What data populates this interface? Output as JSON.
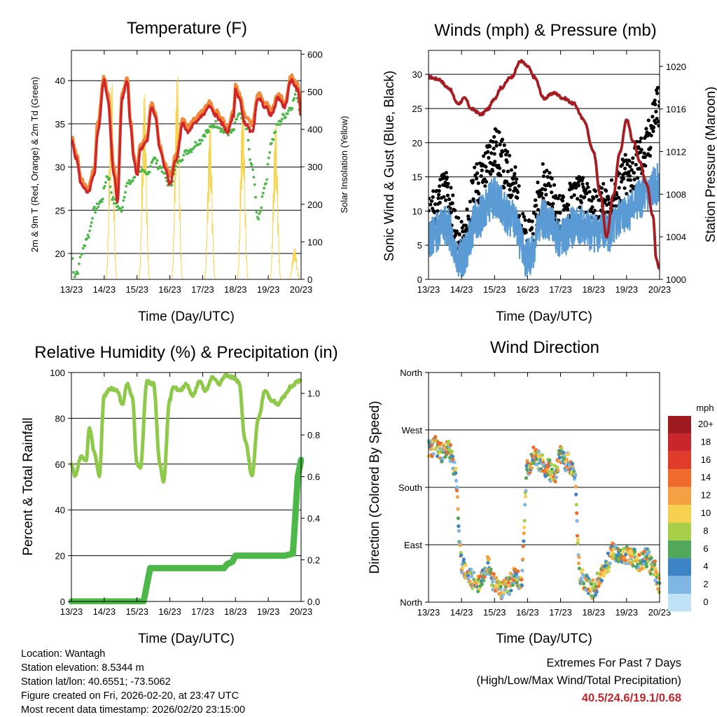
{
  "colors": {
    "temp_2m": "#d0262a",
    "temp_9m": "#f08a3a",
    "dewpoint": "#4bb848",
    "solar": "#f5d44a",
    "wind": "#5b9bd5",
    "gust": "#000000",
    "pressure": "#a51d22",
    "rh": "#8ec94a",
    "precip": "#4bb848",
    "extremes": "#c0282d"
  },
  "x_ticks": [
    "13/23",
    "14/23",
    "15/23",
    "16/23",
    "17/23",
    "18/23",
    "19/23",
    "20/23"
  ],
  "x_axis_label": "Time (Day/UTC)",
  "chart_data": [
    {
      "type": "line",
      "title": "Temperature (F)",
      "xlabel": "Time (Day/UTC)",
      "ylabel": "2m & 9m T (Red, Orange) & 2m Td (Green)",
      "y2label": "Solar Insolation (Yellow)",
      "ylim": [
        17,
        43.5
      ],
      "y2lim": [
        0,
        610
      ],
      "yticks": [
        20,
        25,
        30,
        35,
        40
      ],
      "y2ticks": [
        0,
        100,
        200,
        300,
        400,
        500,
        600
      ],
      "x_days": [
        0,
        1,
        2,
        3,
        4,
        5,
        6,
        7
      ],
      "series": [
        {
          "name": "2m T",
          "x": [
            0,
            0.15,
            0.3,
            0.5,
            0.7,
            0.8,
            1.0,
            1.1,
            1.3,
            1.4,
            1.55,
            1.7,
            1.8,
            1.9,
            2.0,
            2.1,
            2.3,
            2.45,
            2.55,
            2.7,
            2.85,
            3.0,
            3.2,
            3.4,
            3.55,
            3.75,
            4.0,
            4.2,
            4.4,
            4.6,
            4.75,
            4.95,
            5.0,
            5.1,
            5.3,
            5.5,
            5.7,
            5.9,
            6.1,
            6.3,
            6.5,
            6.7,
            6.9,
            7.0
          ],
          "y": [
            33,
            31,
            28,
            27,
            29,
            34,
            40,
            38,
            29,
            26,
            38,
            40,
            35,
            31,
            29,
            32,
            33,
            37,
            36,
            32,
            30,
            28,
            31,
            35,
            34,
            35,
            36,
            37,
            36,
            35,
            34,
            36,
            39,
            38,
            35,
            34,
            38,
            37,
            36,
            38,
            37,
            40,
            39,
            36
          ]
        },
        {
          "name": "9m T",
          "x": [
            0,
            0.15,
            0.3,
            0.5,
            0.7,
            0.8,
            1.0,
            1.1,
            1.3,
            1.4,
            1.55,
            1.7,
            1.8,
            1.9,
            2.0,
            2.1,
            2.3,
            2.45,
            2.55,
            2.7,
            2.85,
            3.0,
            3.2,
            3.4,
            3.55,
            3.75,
            4.0,
            4.2,
            4.4,
            4.6,
            4.75,
            4.95,
            5.0,
            5.1,
            5.3,
            5.5,
            5.7,
            5.9,
            6.1,
            6.3,
            6.5,
            6.7,
            6.9,
            7.0
          ],
          "y": [
            33.5,
            31.5,
            28.5,
            27.5,
            30,
            35,
            40.5,
            38.5,
            30,
            27,
            38.5,
            40.3,
            35.5,
            31.5,
            29.5,
            32.5,
            33.5,
            37.5,
            36.5,
            32.5,
            30.5,
            29,
            31.5,
            35.5,
            34.5,
            35.5,
            36.5,
            37.5,
            36.5,
            35.5,
            34.5,
            36.5,
            39.5,
            38.5,
            36,
            35,
            38.5,
            37.5,
            36.5,
            38.5,
            37.5,
            40.5,
            39.5,
            36.5
          ]
        },
        {
          "name": "2m Td",
          "x": [
            0,
            0.1,
            0.2,
            0.3,
            0.5,
            0.7,
            0.9,
            1.1,
            1.3,
            1.5,
            1.7,
            1.9,
            2.0,
            2.3,
            2.5,
            2.7,
            3.0,
            3.3,
            3.6,
            3.9,
            4.1,
            4.4,
            4.7,
            4.9,
            5.1,
            5.3,
            5.5,
            5.7,
            5.9,
            6.1,
            6.3,
            6.5,
            6.7,
            6.85,
            7.0
          ],
          "y": [
            20,
            17.5,
            18,
            20,
            22,
            25,
            26,
            29,
            26,
            25,
            28,
            28.5,
            30,
            29,
            31,
            30,
            28,
            31,
            32,
            33,
            34,
            35,
            34,
            34,
            36,
            35,
            30,
            24,
            28,
            33,
            35,
            36,
            37,
            38.5,
            36
          ]
        },
        {
          "name": "Solar Insolation",
          "axis": "y2",
          "peaks_x": [
            1.22,
            2.22,
            3.22,
            4.22,
            5.22,
            6.22,
            6.8
          ],
          "peaks_y": [
            560,
            530,
            580,
            440,
            510,
            440,
            90
          ]
        }
      ]
    },
    {
      "type": "line",
      "title": "Winds (mph) & Pressure (mb)",
      "xlabel": "Time (Day/UTC)",
      "ylabel": "Sonic Wind & Gust (Blue, Black)",
      "y2label": "Station Pressure (Maroon)",
      "ylim": [
        0,
        33.5
      ],
      "y2lim": [
        1000,
        1021.5
      ],
      "yticks": [
        0,
        5,
        10,
        15,
        20,
        25,
        30
      ],
      "y2ticks": [
        1000,
        1004,
        1008,
        1012,
        1016,
        1020
      ],
      "series": [
        {
          "name": "Wind",
          "x": [
            0,
            0.5,
            1.0,
            1.5,
            2.0,
            2.5,
            3.0,
            3.5,
            4.0,
            4.5,
            5.0,
            5.5,
            6.0,
            6.5,
            7.0
          ],
          "y": [
            6,
            8,
            3,
            9,
            12,
            9,
            3,
            9,
            6,
            8,
            7,
            7,
            10,
            12,
            14
          ]
        },
        {
          "name": "Gust",
          "x": [
            0,
            0.5,
            1.0,
            1.5,
            2.0,
            2.5,
            3.0,
            3.5,
            4.0,
            4.5,
            5.0,
            5.5,
            6.0,
            6.5,
            7.0
          ],
          "y": [
            9,
            13,
            5,
            14,
            19,
            15,
            5,
            14,
            9,
            12,
            10,
            11,
            15,
            18,
            26
          ]
        },
        {
          "name": "Pressure",
          "axis": "y2",
          "x": [
            0,
            0.3,
            0.6,
            0.9,
            1.1,
            1.3,
            1.6,
            1.8,
            2.0,
            2.2,
            2.5,
            2.8,
            3.0,
            3.2,
            3.5,
            3.8,
            4.1,
            4.4,
            4.7,
            5.0,
            5.2,
            5.4,
            5.6,
            5.8,
            6.0,
            6.2,
            6.4,
            6.6,
            6.8,
            6.9,
            7.0
          ],
          "y": [
            1019,
            1018.8,
            1018,
            1016.5,
            1017,
            1016,
            1015.5,
            1016,
            1017,
            1018,
            1019,
            1020.5,
            1020,
            1019,
            1017,
            1017.5,
            1017,
            1016.5,
            1015,
            1012,
            1008,
            1004,
            1008,
            1012,
            1015,
            1013,
            1011,
            1009,
            1006,
            1002,
            1001
          ]
        }
      ]
    },
    {
      "type": "line",
      "title": "Relative Humidity (%) & Precipitation (in)",
      "xlabel": "Time (Day/UTC)",
      "ylabel": "Percent & Total Rainfall",
      "ylim": [
        0,
        100
      ],
      "y2lim": [
        0,
        1.1
      ],
      "yticks": [
        0,
        20,
        40,
        60,
        80,
        100
      ],
      "y2ticks": [
        0.0,
        0.2,
        0.4,
        0.6,
        0.8,
        1.0
      ],
      "series": [
        {
          "name": "Relative Humidity",
          "x": [
            0,
            0.1,
            0.3,
            0.45,
            0.55,
            0.7,
            0.85,
            1.0,
            1.2,
            1.4,
            1.55,
            1.7,
            1.85,
            2.0,
            2.1,
            2.3,
            2.5,
            2.7,
            2.8,
            3.0,
            3.1,
            3.3,
            3.5,
            3.7,
            3.9,
            4.1,
            4.3,
            4.5,
            4.7,
            4.9,
            5.1,
            5.3,
            5.5,
            5.7,
            5.9,
            6.1,
            6.3,
            6.5,
            6.7,
            6.9,
            7.0
          ],
          "y": [
            60,
            55,
            63,
            62,
            76,
            65,
            55,
            90,
            93,
            92,
            86,
            95,
            90,
            60,
            58,
            96,
            95,
            60,
            52,
            88,
            94,
            92,
            95,
            90,
            96,
            92,
            98,
            95,
            99,
            98,
            96,
            70,
            55,
            80,
            92,
            88,
            86,
            90,
            94,
            96,
            97
          ]
        },
        {
          "name": "Total Precipitation",
          "axis": "y2",
          "x": [
            0,
            2.2,
            2.4,
            3.0,
            3.5,
            4.0,
            4.65,
            4.75,
            4.9,
            5.0,
            5.5,
            6.0,
            6.5,
            6.75,
            6.82,
            6.9,
            7.0
          ],
          "y": [
            0,
            0,
            0.16,
            0.16,
            0.16,
            0.16,
            0.16,
            0.18,
            0.19,
            0.22,
            0.22,
            0.22,
            0.22,
            0.23,
            0.4,
            0.6,
            0.68
          ]
        }
      ]
    },
    {
      "type": "scatter",
      "title": "Wind Direction",
      "xlabel": "Time (Day/UTC)",
      "ylabel": "Direction (Colored By Speed)",
      "ylim": [
        0,
        360
      ],
      "yticks": [
        {
          "value": 0,
          "label": "North"
        },
        {
          "value": 90,
          "label": "East"
        },
        {
          "value": 180,
          "label": "South"
        },
        {
          "value": 270,
          "label": "West"
        },
        {
          "value": 360,
          "label": "North"
        }
      ],
      "colorbar": {
        "title": "mph",
        "labels": [
          "20+",
          "18",
          "16",
          "14",
          "12",
          "10",
          "8",
          "6",
          "4",
          "2",
          "0"
        ],
        "colors": [
          "#9e1a1e",
          "#c8262a",
          "#e13c2a",
          "#f06a2c",
          "#f5a043",
          "#f6d04f",
          "#a7cf47",
          "#52a85a",
          "#3d84c6",
          "#7fb6e3",
          "#bfe2f7"
        ]
      },
      "series": [
        {
          "name": "Direction",
          "x": [
            0,
            0.2,
            0.4,
            0.6,
            0.8,
            1.0,
            1.2,
            1.5,
            1.8,
            2.0,
            2.2,
            2.4,
            2.6,
            2.8,
            3.0,
            3.2,
            3.4,
            3.6,
            3.8,
            4.0,
            4.2,
            4.4,
            4.6,
            4.8,
            5.0,
            5.2,
            5.4,
            5.6,
            5.8,
            6.0,
            6.2,
            6.4,
            6.6,
            6.8,
            7.0
          ],
          "y": [
            240,
            245,
            235,
            240,
            210,
            60,
            40,
            30,
            60,
            30,
            20,
            25,
            40,
            30,
            210,
            230,
            220,
            210,
            200,
            230,
            220,
            210,
            40,
            30,
            20,
            40,
            60,
            80,
            70,
            75,
            70,
            60,
            70,
            55,
            30
          ]
        }
      ]
    }
  ],
  "info": {
    "location": "Location: Wantagh",
    "elevation": "Station elevation: 8.5344 m",
    "latlon": "Station lat/lon: 40.6551; -73.5062",
    "created": "Figure created on Fri, 2026-02-20, at 23:47 UTC",
    "recent": "Most recent data timestamp: 2026/02/20 23:15:00"
  },
  "extremes": {
    "title": "Extremes For Past 7 Days",
    "subtitle": "(High/Low/Max Wind/Total Precipitation)",
    "values": "40.5/24.6/19.1/0.68"
  }
}
